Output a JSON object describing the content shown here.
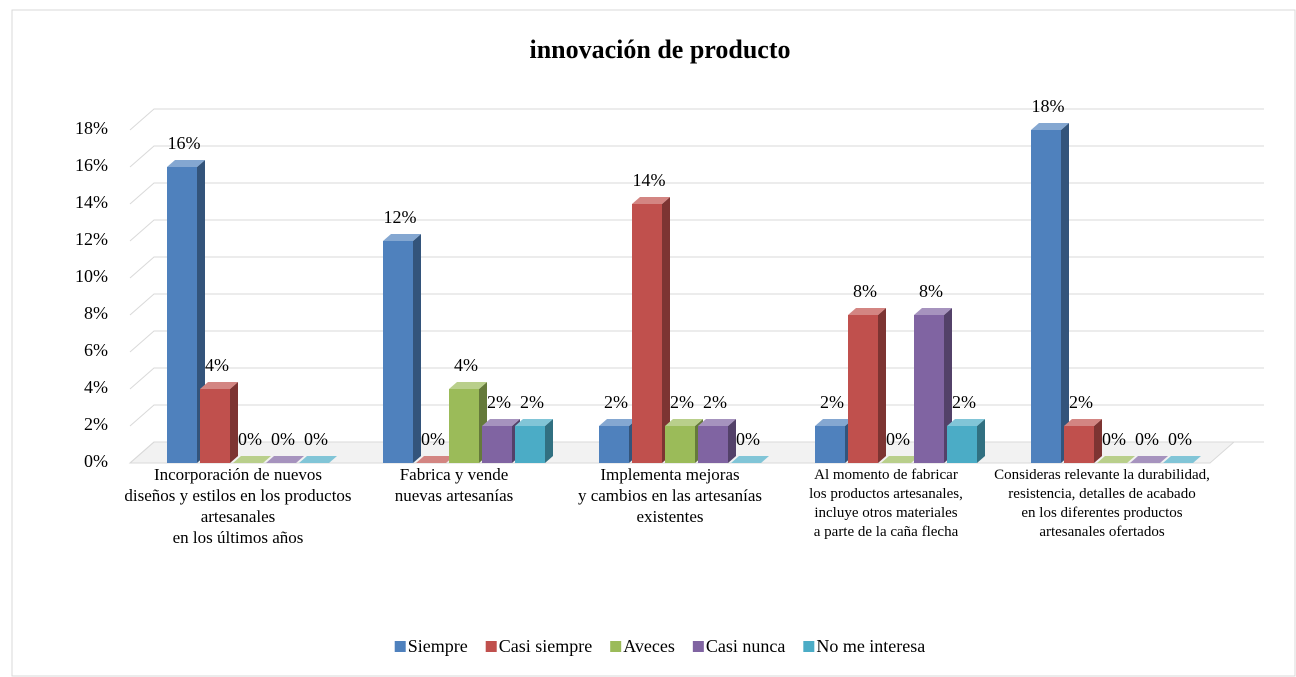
{
  "chart_data": {
    "type": "bar3d",
    "title": "innovación de producto",
    "categories": [
      "Incorporación de nuevos\ndiseños y estilos en los productos\nartesanales\nen los últimos años",
      "Fabrica y vende\nnuevas artesanías",
      "Implementa mejoras\ny cambios en las artesanías\nexistentes",
      "Al momento de fabricar\nlos productos artesanales,\nincluye otros materiales\na parte de la caña flecha",
      "Consideras relevante la durabilidad,\nresistencia, detalles de acabado\nen los diferentes productos\nartesanales ofertados"
    ],
    "series": [
      {
        "name": "Siempre",
        "color": "#4f81bd",
        "values": [
          16,
          12,
          2,
          2,
          18
        ],
        "value_labels": [
          "16%",
          "12%",
          "2%",
          "2%",
          "18%"
        ]
      },
      {
        "name": "Casi siempre",
        "color": "#c0504d",
        "values": [
          4,
          0,
          14,
          8,
          2
        ],
        "value_labels": [
          "4%",
          "0%",
          "14%",
          "8%",
          "2%"
        ]
      },
      {
        "name": "Aveces",
        "color": "#9bbb59",
        "values": [
          0,
          4,
          2,
          0,
          0
        ],
        "value_labels": [
          "0%",
          "4%",
          "2%",
          "0%",
          "0%"
        ]
      },
      {
        "name": "Casi nunca",
        "color": "#8064a2",
        "values": [
          0,
          2,
          2,
          8,
          0
        ],
        "value_labels": [
          "0%",
          "2%",
          "2%",
          "8%",
          "0%"
        ]
      },
      {
        "name": "No me interesa",
        "color": "#4bacc6",
        "values": [
          0,
          2,
          0,
          2,
          0
        ],
        "value_labels": [
          "0%",
          "2%",
          "0%",
          "2%",
          "0%"
        ]
      }
    ],
    "ylim": [
      0,
      18
    ],
    "yticks": [
      {
        "value": 0,
        "label": "0%"
      },
      {
        "value": 2,
        "label": "2%"
      },
      {
        "value": 4,
        "label": "4%"
      },
      {
        "value": 6,
        "label": "6%"
      },
      {
        "value": 8,
        "label": "8%"
      },
      {
        "value": 10,
        "label": "10%"
      },
      {
        "value": 12,
        "label": "12%"
      },
      {
        "value": 14,
        "label": "14%"
      },
      {
        "value": 16,
        "label": "16%"
      },
      {
        "value": 18,
        "label": "18%"
      }
    ],
    "grid": true,
    "legend": "bottom"
  }
}
